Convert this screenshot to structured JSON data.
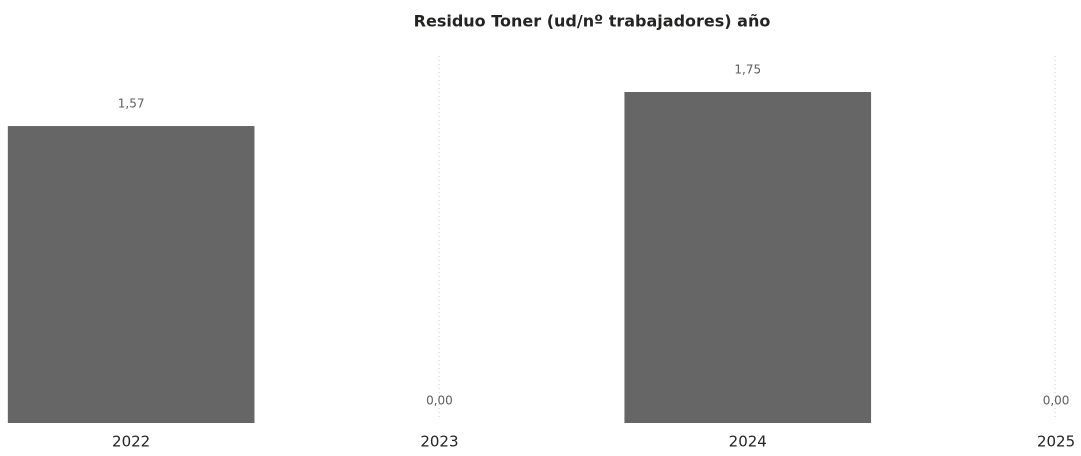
{
  "chart_data": {
    "type": "bar",
    "title": "Residuo Toner (ud/nº trabajadores) año",
    "categories": [
      "2022",
      "2023",
      "2024",
      "2025"
    ],
    "values": [
      1.57,
      0,
      1.75,
      0
    ],
    "value_labels": [
      "1,57",
      "0,00",
      "1,75",
      "0,00"
    ],
    "color": "#666666"
  }
}
